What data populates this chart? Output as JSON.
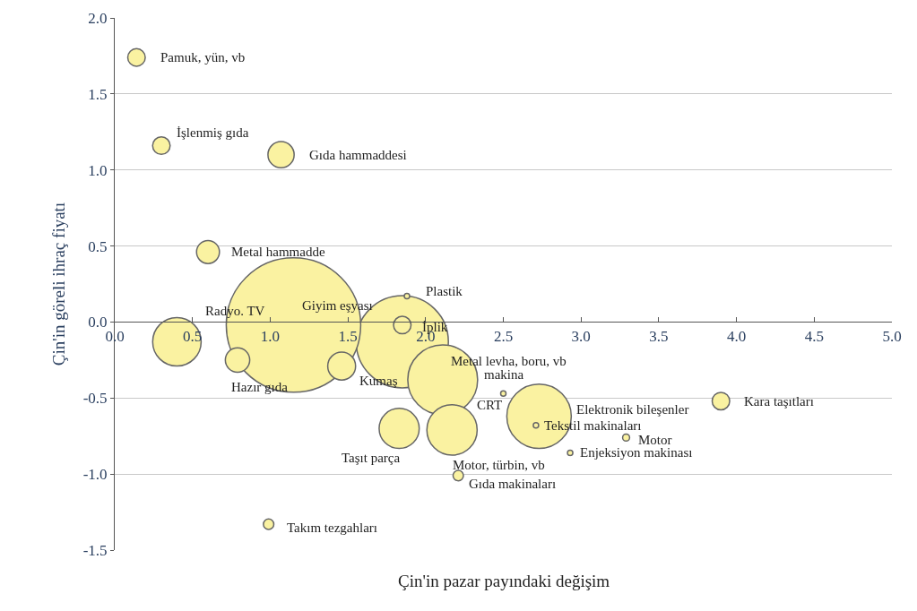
{
  "chart_data": {
    "type": "bubble",
    "xlabel": "Çin'in pazar payındaki değişim",
    "ylabel": "Çin'in göreli ihraç fiyatı",
    "x": [
      0.14,
      0.3,
      1.07,
      0.6,
      1.85,
      1.88,
      1.85,
      1.15,
      0.4,
      0.79,
      1.46,
      2.11,
      2.5,
      2.73,
      2.71,
      3.9,
      3.29,
      2.93,
      1.83,
      2.17,
      2.21,
      0.99
    ],
    "values": [
      1.74,
      1.16,
      1.1,
      0.46,
      -0.13,
      0.17,
      -0.02,
      -0.02,
      -0.13,
      -0.25,
      -0.29,
      -0.38,
      -0.47,
      -0.62,
      -0.68,
      -0.52,
      -0.76,
      -0.86,
      -0.7,
      -0.71,
      -1.01,
      -1.33
    ],
    "sizes": [
      0.017,
      0.017,
      0.038,
      0.029,
      0.47,
      0.0007,
      0.017,
      1,
      0.13,
      0.033,
      0.043,
      0.27,
      0.0007,
      0.23,
      0.0007,
      0.017,
      0.0027,
      0.0007,
      0.089,
      0.14,
      0.006,
      0.006
    ],
    "color": "#faf2a1",
    "annotations": [
      "Pamuk, yün, vb",
      "İşlenmiş gıda",
      "Gıda hammaddesi",
      "Metal hammadde",
      "Metal levha, boru, vb",
      "Plastik",
      "İplik",
      "Giyim eşyası",
      "Radyo. TV",
      "Hazır gıda",
      "Kumaş",
      "makina",
      "CRT",
      "Elektronik bileşenler",
      "Tekstil makinaları",
      "Kara taşıtları",
      "Motor",
      "Enjeksiyon makinası",
      "Taşıt parça",
      "Motor, türbin, vb",
      "Gıda makinaları",
      "Takım tezgahları"
    ],
    "xlim": [
      0,
      5
    ],
    "xticks": [
      {
        "value": 0,
        "label": "0.0"
      },
      {
        "value": 0.5,
        "label": "0.5"
      },
      {
        "value": 1,
        "label": "1.0"
      },
      {
        "value": 1.5,
        "label": "1.5"
      },
      {
        "value": 2,
        "label": "2.0"
      },
      {
        "value": 2.5,
        "label": "2.5"
      },
      {
        "value": 3,
        "label": "3.0"
      },
      {
        "value": 3.5,
        "label": "3.5"
      },
      {
        "value": 4,
        "label": "4.0"
      },
      {
        "value": 4.5,
        "label": "4.5"
      },
      {
        "value": 5,
        "label": "5.0"
      }
    ],
    "ylim": [
      -1.5,
      2
    ],
    "yticks": [
      {
        "value": -1.5,
        "label": "-1.5"
      },
      {
        "value": -1,
        "label": "-1.0"
      },
      {
        "value": -0.5,
        "label": "-0.5"
      },
      {
        "value": 0,
        "label": "0.0"
      },
      {
        "value": 0.5,
        "label": "0.5"
      },
      {
        "value": 1,
        "label": "1.0"
      },
      {
        "value": 1.5,
        "label": "1.5"
      },
      {
        "value": 2,
        "label": "2.0"
      }
    ],
    "grid": "y"
  }
}
